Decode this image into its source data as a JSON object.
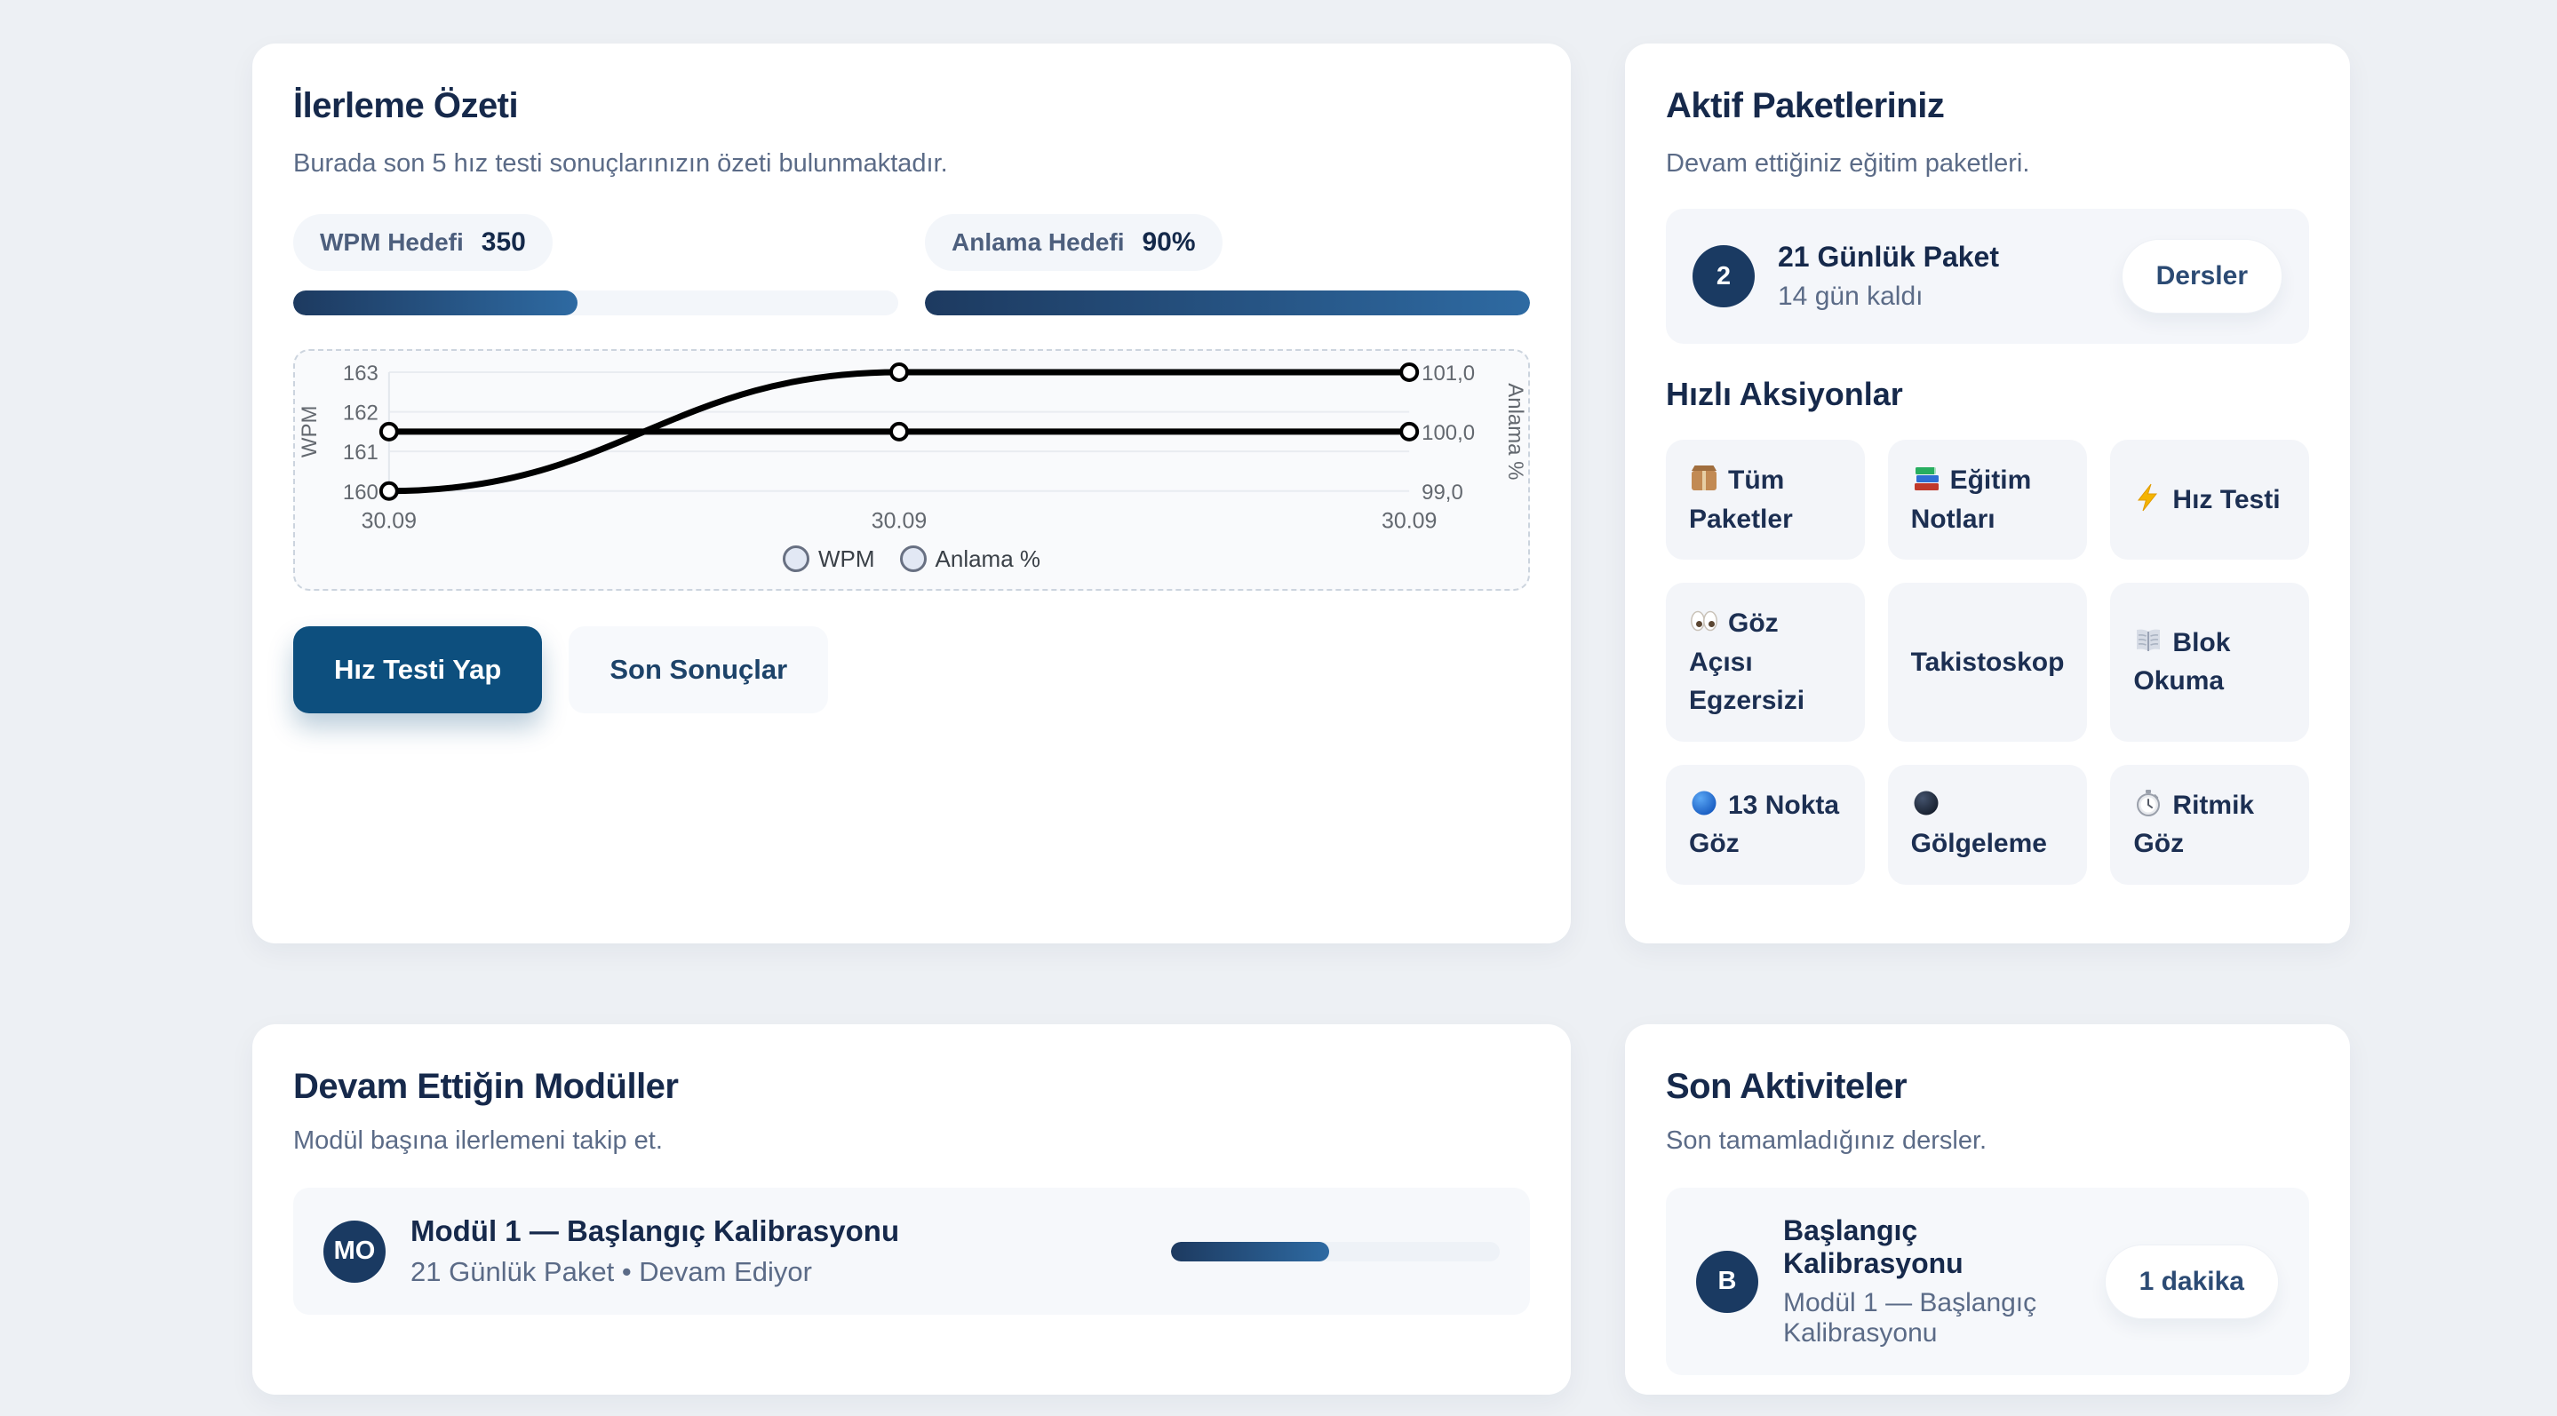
{
  "colors": {
    "page_background": "#edf0f4",
    "card_background": "#ffffff",
    "heading_navy": "#16294b",
    "subtitle_slate": "#5b6b87",
    "accent_blue": "#0d4f7e",
    "progress_gradient_start": "#1d3a60",
    "progress_gradient_end": "#2e6aa2",
    "chart_line": "#000000"
  },
  "progress_summary": {
    "title": "İlerleme Özeti",
    "subtitle": "Burada son 5 hız testi sonuçlarınızın özeti bulunmaktadır.",
    "wpm_goal": {
      "label": "WPM Hedefi",
      "value": "350",
      "progress_pct": 47
    },
    "comprehension_goal": {
      "label": "Anlama Hedefi",
      "value": "90%",
      "progress_pct": 100
    },
    "buttons": {
      "primary": "Hız Testi Yap",
      "secondary": "Son Sonuçlar"
    }
  },
  "chart_data": {
    "type": "line",
    "x": [
      "30.09",
      "30.09",
      "30.09"
    ],
    "series": [
      {
        "name": "WPM",
        "axis": "left",
        "values": [
          160,
          163,
          163
        ]
      },
      {
        "name": "Anlama %",
        "axis": "right",
        "values": [
          100.0,
          100.0,
          100.0
        ]
      }
    ],
    "left_axis": {
      "label": "WPM",
      "ticks": [
        163,
        162,
        161,
        160
      ],
      "min": 160,
      "max": 163
    },
    "right_axis": {
      "label": "Anlama %",
      "ticks": [
        "101,0",
        "100,0",
        "99,0"
      ],
      "tick_values": [
        101,
        100,
        99
      ],
      "min": 99,
      "max": 101
    },
    "legend": [
      "WPM",
      "Anlama %"
    ],
    "legend_position": "bottom",
    "grid": true
  },
  "active_packages": {
    "title": "Aktif Paketleriniz",
    "subtitle": "Devam ettiğiniz eğitim paketleri.",
    "package": {
      "badge": "2",
      "name": "21 Günlük Paket",
      "remaining": "14 gün kaldı",
      "action": "Dersler"
    }
  },
  "quick_actions": {
    "title": "Hızlı Aksiyonlar",
    "items": [
      {
        "label": "Tüm Paketler",
        "icon": "package-icon"
      },
      {
        "label": "Eğitim Notları",
        "icon": "books-icon"
      },
      {
        "label": "Hız Testi",
        "icon": "lightning-icon"
      },
      {
        "label": "Göz Açısı Egzersizi",
        "icon": "eyes-icon"
      },
      {
        "label": "Takistoskop",
        "icon": null
      },
      {
        "label": "Blok Okuma",
        "icon": "open-book-icon"
      },
      {
        "label": "13 Nokta Göz",
        "icon": "blue-circle-icon"
      },
      {
        "label": "Gölgeleme",
        "icon": "dark-circle-icon"
      },
      {
        "label": "Ritmik Göz",
        "icon": "stopwatch-icon"
      }
    ]
  },
  "modules": {
    "title": "Devam Ettiğin Modüller",
    "subtitle": "Modül başına ilerlemeni takip et.",
    "items": [
      {
        "avatar": "MO",
        "name": "Modül 1 — Başlangıç Kalibrasyonu",
        "meta": "21 Günlük Paket • Devam Ediyor",
        "progress_pct": 48
      }
    ]
  },
  "recent_activities": {
    "title": "Son Aktiviteler",
    "subtitle": "Son tamamladığınız dersler.",
    "items": [
      {
        "avatar": "B",
        "name": "Başlangıç Kalibrasyonu",
        "meta": "Modül 1 — Başlangıç Kalibrasyonu",
        "duration": "1 dakika"
      }
    ]
  }
}
